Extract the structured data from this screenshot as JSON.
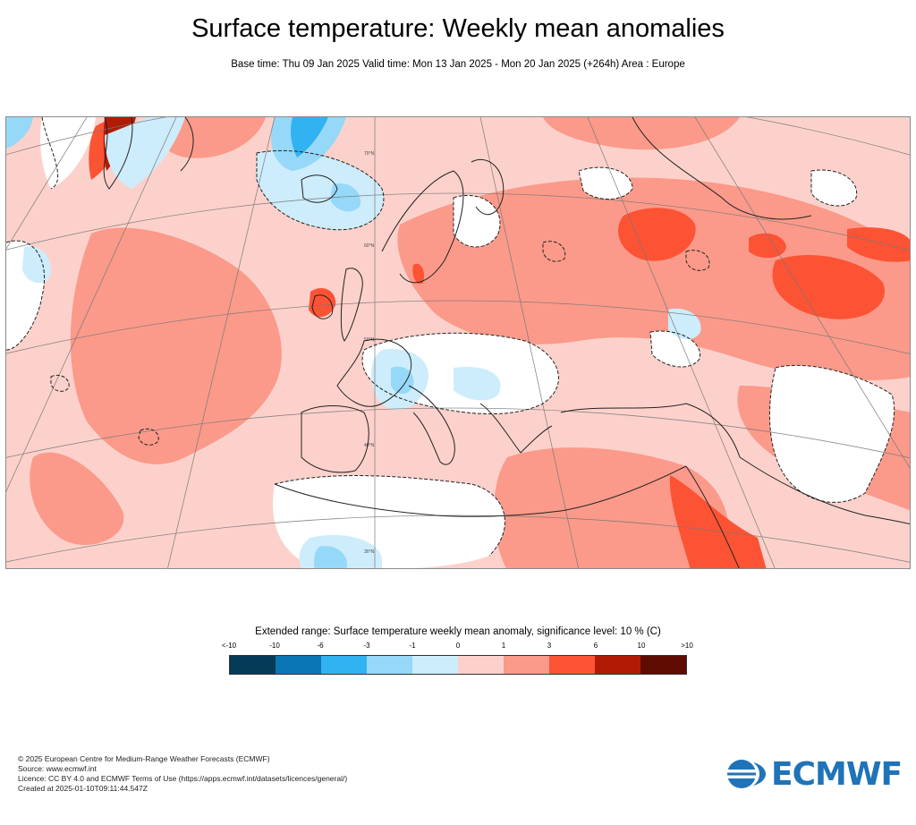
{
  "header": {
    "title": "Surface temperature: Weekly mean anomalies",
    "subtitle": "Base time: Thu 09 Jan 2025 Valid time: Mon 13 Jan 2025 - Mon 20 Jan 2025 (+264h) Area : Europe"
  },
  "map": {
    "region": "Europe",
    "latitude_labels": [
      "70°N",
      "60°N",
      "50°N",
      "40°N",
      "30°N"
    ]
  },
  "legend": {
    "title": "Extended range: Surface temperature weekly mean anomaly, significance level: 10 % (C)",
    "ticks": [
      "<-10",
      "-10",
      "-6",
      "-3",
      "-1",
      "0",
      "1",
      "3",
      "6",
      "10",
      ">10"
    ],
    "colors": [
      "#053a57",
      "#0a76b5",
      "#30b3f0",
      "#96d8f8",
      "#cdecfc",
      "#fdd1cb",
      "#fb9a8a",
      "#fc5335",
      "#b11b06",
      "#5e0c02"
    ]
  },
  "footer": {
    "line1": "© 2025 European Centre for Medium-Range Weather Forecasts (ECMWF)",
    "line2": "Source: www.ecmwf.int",
    "line3": "Licence: CC BY 4.0 and ECMWF Terms of Use (https://apps.ecmwf.int/datasets/licences/general/)",
    "line4": "Created at 2025-01-10T09:11:44.547Z"
  },
  "logo": {
    "text": "ECMWF",
    "color": "#1f73b8"
  }
}
